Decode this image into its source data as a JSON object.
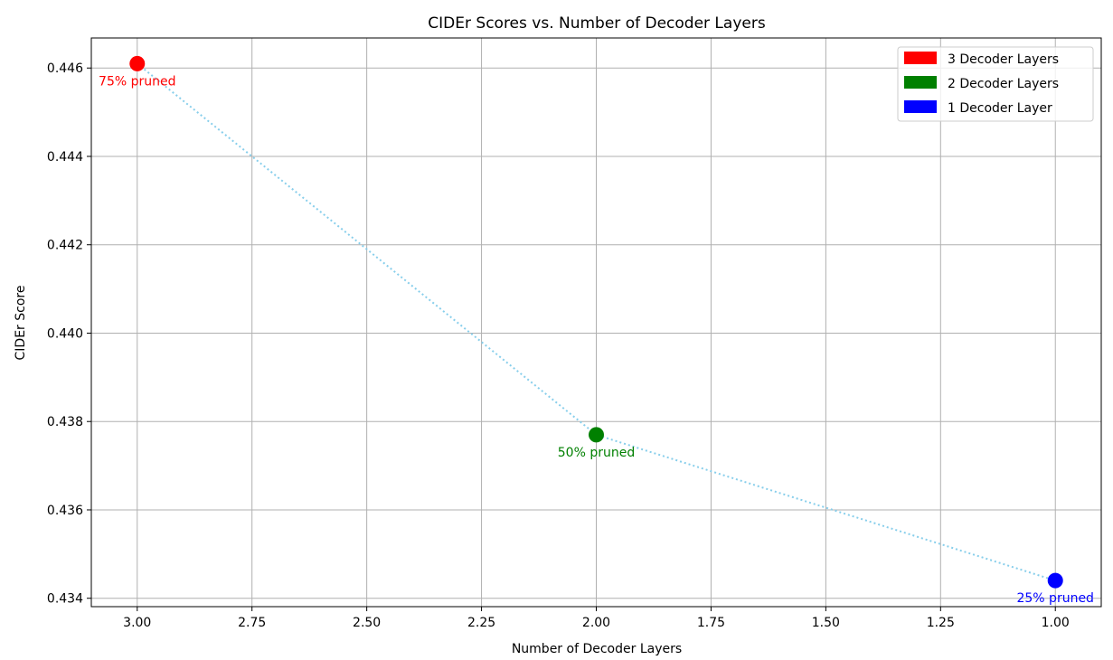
{
  "chart_data": {
    "type": "scatter",
    "title": "CIDEr Scores vs. Number of Decoder Layers",
    "xlabel": "Number of Decoder Layers",
    "ylabel": "CIDEr Score",
    "xlim": [
      3.1,
      0.9
    ],
    "ylim": [
      0.43381,
      0.44668
    ],
    "x_inverted": true,
    "grid": true,
    "legend_position": "top-right",
    "x_ticks": [
      3.0,
      2.75,
      2.5,
      2.25,
      2.0,
      1.75,
      1.5,
      1.25,
      1.0
    ],
    "x_tick_labels": [
      "3.00",
      "2.75",
      "2.50",
      "2.25",
      "2.00",
      "1.75",
      "1.50",
      "1.25",
      "1.00"
    ],
    "y_ticks": [
      0.434,
      0.436,
      0.438,
      0.44,
      0.442,
      0.444,
      0.446
    ],
    "y_tick_labels": [
      "0.434",
      "0.436",
      "0.438",
      "0.440",
      "0.442",
      "0.444",
      "0.446"
    ],
    "connector_color": "#87ceeb",
    "points": [
      {
        "x": 3,
        "y": 0.4461,
        "color": "#ff0000",
        "label": "75% pruned"
      },
      {
        "x": 2,
        "y": 0.4377,
        "color": "#008000",
        "label": "50% pruned"
      },
      {
        "x": 1,
        "y": 0.4344,
        "color": "#0000ff",
        "label": "25% pruned"
      }
    ],
    "legend": [
      {
        "label": "3 Decoder Layers",
        "color": "#ff0000"
      },
      {
        "label": "2 Decoder Layers",
        "color": "#008000"
      },
      {
        "label": "1 Decoder Layer",
        "color": "#0000ff"
      }
    ]
  }
}
